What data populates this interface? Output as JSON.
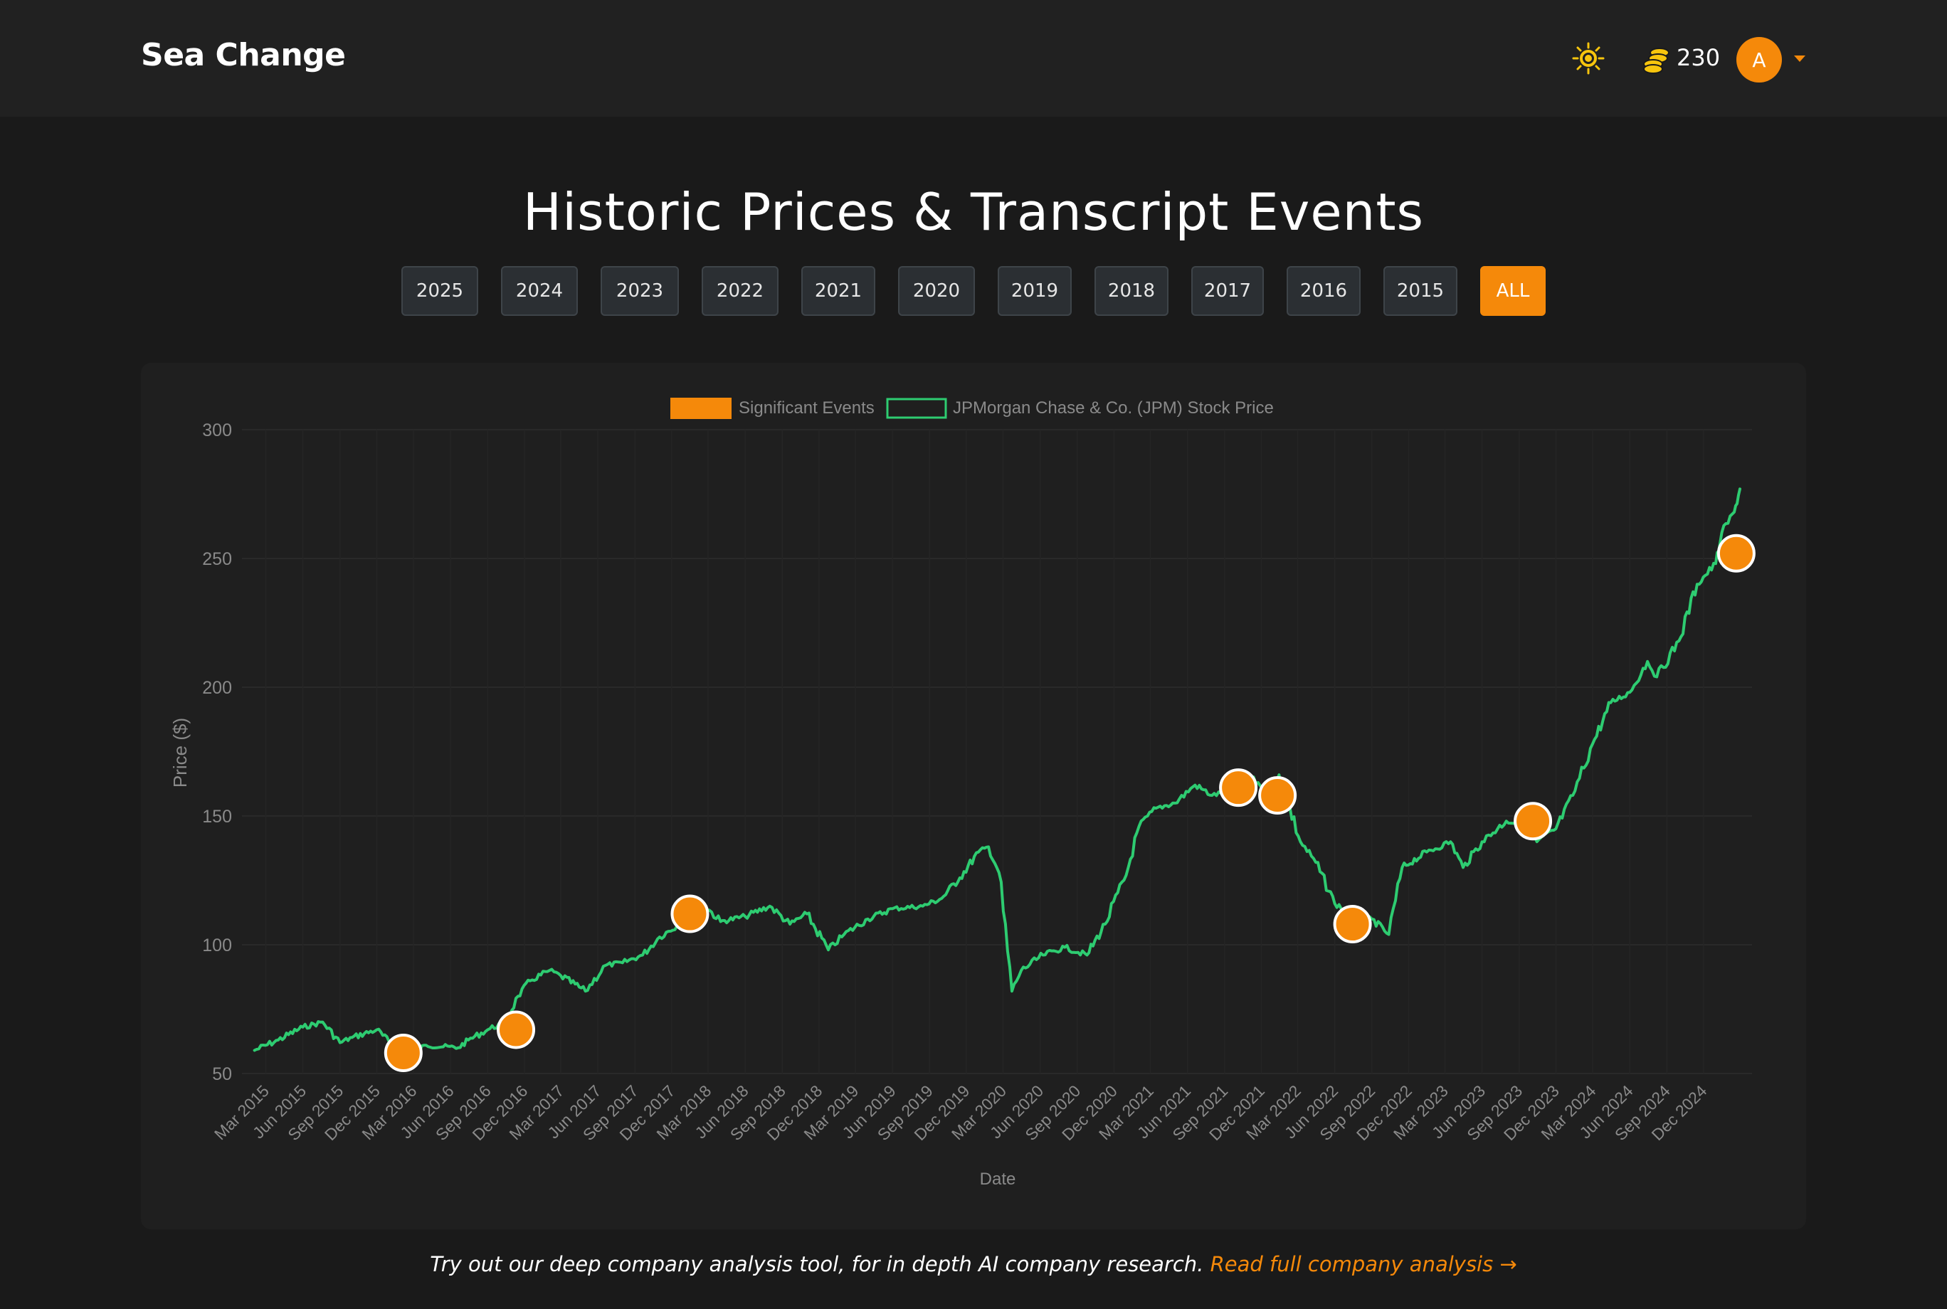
{
  "header": {
    "brand": "Sea Change",
    "coins": "230",
    "avatar_letter": "A",
    "icons": {
      "theme": "sun-icon",
      "coins": "coins-icon",
      "menu": "caret-down-icon"
    }
  },
  "page": {
    "title": "Historic Prices & Transcript Events",
    "year_filters": [
      "2025",
      "2024",
      "2023",
      "2022",
      "2021",
      "2020",
      "2019",
      "2018",
      "2017",
      "2016",
      "2015",
      "ALL"
    ],
    "active_filter": "ALL"
  },
  "footer": {
    "text": "Try out our deep company analysis tool, for in depth AI company research. ",
    "link": "Read full company analysis →"
  },
  "colors": {
    "accent": "#f5890a",
    "line": "#2ecc71",
    "background": "#1a1a1a",
    "card": "#1f1f1f"
  },
  "chart_data": {
    "type": "line",
    "xlabel": "Date",
    "ylabel": "Price ($)",
    "ylim": [
      50,
      300
    ],
    "yticks": [
      50,
      100,
      150,
      200,
      250,
      300
    ],
    "grid": true,
    "legend_position": "top-center",
    "xticks": [
      "Mar 2015",
      "Jun 2015",
      "Sep 2015",
      "Dec 2015",
      "Mar 2016",
      "Jun 2016",
      "Sep 2016",
      "Dec 2016",
      "Mar 2017",
      "Jun 2017",
      "Sep 2017",
      "Dec 2017",
      "Mar 2018",
      "Jun 2018",
      "Sep 2018",
      "Dec 2018",
      "Mar 2019",
      "Jun 2019",
      "Sep 2019",
      "Dec 2019",
      "Mar 2020",
      "Jun 2020",
      "Sep 2020",
      "Dec 2020",
      "Mar 2021",
      "Jun 2021",
      "Sep 2021",
      "Dec 2021",
      "Mar 2022",
      "Jun 2022",
      "Sep 2022",
      "Dec 2022",
      "Mar 2023",
      "Jun 2023",
      "Sep 2023",
      "Dec 2023",
      "Mar 2024",
      "Jun 2024",
      "Sep 2024",
      "Dec 2024"
    ],
    "series": [
      {
        "name": "JPMorgan Chase & Co. (JPM) Stock Price",
        "kind": "line",
        "x": [
          "2015-02-01",
          "2015-04-01",
          "2015-06-01",
          "2015-07-20",
          "2015-09-01",
          "2015-10-01",
          "2015-12-01",
          "2016-01-15",
          "2016-02-10",
          "2016-04-01",
          "2016-06-20",
          "2016-07-15",
          "2016-09-01",
          "2016-10-15",
          "2016-11-15",
          "2016-12-15",
          "2017-02-01",
          "2017-03-01",
          "2017-05-01",
          "2017-06-20",
          "2017-08-01",
          "2017-09-20",
          "2017-11-01",
          "2017-12-20",
          "2018-01-20",
          "2018-02-10",
          "2018-04-01",
          "2018-06-01",
          "2018-08-01",
          "2018-09-20",
          "2018-11-01",
          "2018-12-24",
          "2019-02-01",
          "2019-04-01",
          "2019-06-01",
          "2019-08-15",
          "2019-10-01",
          "2019-11-15",
          "2019-12-31",
          "2020-01-25",
          "2020-02-20",
          "2020-03-23",
          "2020-04-15",
          "2020-06-08",
          "2020-08-01",
          "2020-09-25",
          "2020-11-09",
          "2020-12-31",
          "2021-02-01",
          "2021-03-15",
          "2021-05-01",
          "2021-06-20",
          "2021-08-01",
          "2021-09-30",
          "2021-11-01",
          "2021-12-31",
          "2022-01-14",
          "2022-03-08",
          "2022-04-15",
          "2022-06-01",
          "2022-07-14",
          "2022-09-01",
          "2022-10-13",
          "2022-11-15",
          "2023-01-15",
          "2023-03-15",
          "2023-04-15",
          "2023-06-01",
          "2023-07-31",
          "2023-09-01",
          "2023-10-15",
          "2023-12-01",
          "2024-01-12",
          "2024-03-01",
          "2024-04-15",
          "2024-06-01",
          "2024-07-15",
          "2024-08-07",
          "2024-10-01",
          "2024-11-15",
          "2024-12-31",
          "2025-01-15",
          "2025-02-15",
          "2025-03-01"
        ],
        "y": [
          59,
          63,
          68,
          70,
          62,
          64,
          67,
          60,
          55,
          61,
          60,
          63,
          67,
          70,
          80,
          86,
          90,
          88,
          82,
          92,
          93,
          96,
          103,
          108,
          114,
          117,
          109,
          111,
          115,
          108,
          112,
          98,
          104,
          110,
          114,
          115,
          118,
          126,
          136,
          138,
          128,
          82,
          90,
          96,
          99,
          96,
          108,
          127,
          146,
          153,
          155,
          162,
          158,
          160,
          165,
          159,
          166,
          140,
          132,
          116,
          112,
          110,
          104,
          130,
          136,
          140,
          130,
          140,
          148,
          147,
          140,
          145,
          158,
          178,
          194,
          198,
          210,
          204,
          218,
          240,
          248,
          260,
          268,
          277
        ]
      },
      {
        "name": "Significant Events",
        "kind": "points",
        "x": [
          "2016-02-05",
          "2016-11-10",
          "2018-01-15",
          "2021-10-05",
          "2022-01-10",
          "2022-07-15",
          "2023-10-05",
          "2025-02-20"
        ],
        "y": [
          58,
          67,
          112,
          161,
          158,
          108,
          148,
          252
        ]
      }
    ]
  }
}
